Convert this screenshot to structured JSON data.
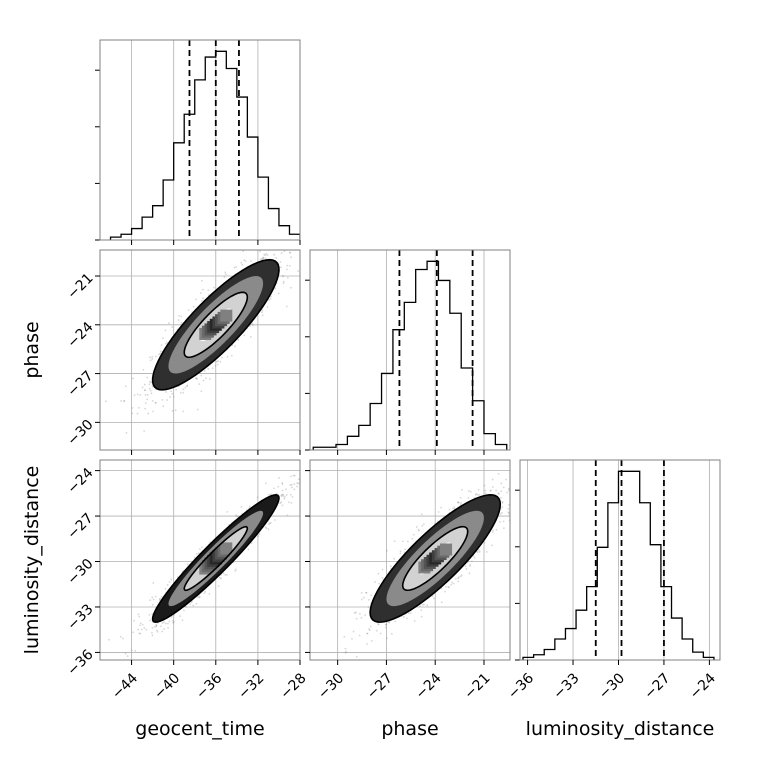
{
  "chart_data": {
    "type": "corner",
    "parameters": [
      "geocent_time",
      "phase",
      "luminosity_distance"
    ],
    "axis_labels": {
      "x": [
        "geocent_time",
        "phase",
        "luminosity_distance"
      ],
      "y": [
        "phase",
        "luminosity_distance"
      ]
    },
    "axes": {
      "geocent_time": {
        "range": [
          -47,
          -28
        ],
        "ticks": [
          -44,
          -40,
          -36,
          -32,
          -28
        ],
        "tick_labels": [
          "−44",
          "−40",
          "−36",
          "−32",
          "−28"
        ]
      },
      "phase": {
        "range": [
          -31.7,
          -19.4
        ],
        "ticks": [
          -30,
          -27,
          -24,
          -21
        ],
        "tick_labels": [
          "−30",
          "−27",
          "−24",
          "−21"
        ]
      },
      "luminosity_distance": {
        "range": [
          -36.5,
          -23.3
        ],
        "ticks": [
          -36,
          -33,
          -30,
          -27,
          -24
        ],
        "tick_labels": [
          "−36",
          "−33",
          "−30",
          "−27",
          "−24"
        ]
      }
    },
    "histograms": [
      {
        "parameter": "geocent_time",
        "bin_edges": [
          -46,
          -45,
          -44,
          -43,
          -42,
          -41,
          -40,
          -39,
          -38,
          -37,
          -36,
          -35,
          -34,
          -33,
          -32,
          -31,
          -30,
          -29,
          -28
        ],
        "counts": [
          1,
          2,
          4,
          8,
          12,
          21,
          34,
          44,
          56,
          64,
          66,
          60,
          50,
          36,
          22,
          11,
          5,
          2
        ],
        "quantiles": [
          -38.5,
          -36.0,
          -33.8
        ]
      },
      {
        "parameter": "phase",
        "bin_edges": [
          -31.5,
          -30.8,
          -30.1,
          -29.4,
          -28.7,
          -28.0,
          -27.3,
          -26.6,
          -25.9,
          -25.2,
          -24.5,
          -23.8,
          -23.1,
          -22.4,
          -21.7,
          -21.0,
          -20.3,
          -19.6
        ],
        "counts": [
          1,
          1,
          2,
          5,
          9,
          17,
          28,
          44,
          54,
          66,
          69,
          62,
          50,
          30,
          18,
          6,
          2
        ],
        "quantiles": [
          -26.2,
          -23.9,
          -21.7
        ]
      },
      {
        "parameter": "luminosity_distance",
        "bin_edges": [
          -36.3,
          -35.6,
          -34.9,
          -34.2,
          -33.5,
          -32.8,
          -32.1,
          -31.4,
          -30.7,
          -30.0,
          -29.3,
          -28.6,
          -27.9,
          -27.2,
          -26.5,
          -25.8,
          -25.1,
          -24.4,
          -23.7
        ],
        "counts": [
          1,
          2,
          4,
          8,
          12,
          19,
          28,
          43,
          60,
          72,
          72,
          60,
          44,
          28,
          16,
          8,
          3,
          1
        ],
        "quantiles": [
          -31.5,
          -29.8,
          -27.0
        ]
      }
    ],
    "pairs": [
      {
        "x": "geocent_time",
        "y": "phase",
        "mean": [
          -36.0,
          -24.0
        ],
        "sd": [
          3.0,
          2.0
        ],
        "correlation": 0.85,
        "contours": [
          {
            "level": 0.118,
            "fill": "#ffffff"
          },
          {
            "level": 0.393,
            "fill": "#d2d2d2"
          },
          {
            "level": 0.675,
            "fill": "#8a8a8a"
          },
          {
            "level": 0.865,
            "fill": "#2f2f2f"
          }
        ]
      },
      {
        "x": "geocent_time",
        "y": "luminosity_distance",
        "mean": [
          -36.0,
          -29.8
        ],
        "sd": [
          3.0,
          2.1
        ],
        "correlation": 0.95,
        "contours": [
          {
            "level": 0.118,
            "fill": "#ffffff"
          },
          {
            "level": 0.393,
            "fill": "#d2d2d2"
          },
          {
            "level": 0.675,
            "fill": "#8a8a8a"
          },
          {
            "level": 0.865,
            "fill": "#1a1a1a"
          }
        ]
      },
      {
        "x": "phase",
        "y": "luminosity_distance",
        "mean": [
          -24.0,
          -29.8
        ],
        "sd": [
          2.0,
          2.1
        ],
        "correlation": 0.85,
        "contours": [
          {
            "level": 0.118,
            "fill": "#ffffff"
          },
          {
            "level": 0.393,
            "fill": "#d2d2d2"
          },
          {
            "level": 0.675,
            "fill": "#8a8a8a"
          },
          {
            "level": 0.865,
            "fill": "#2f2f2f"
          }
        ]
      }
    ],
    "grid": true,
    "quantile_line_style": "dashed",
    "colors": {
      "frame": "#808080",
      "grid": "#b0b0b0",
      "line": "#000000",
      "scatter": "#8c8c8c"
    }
  }
}
